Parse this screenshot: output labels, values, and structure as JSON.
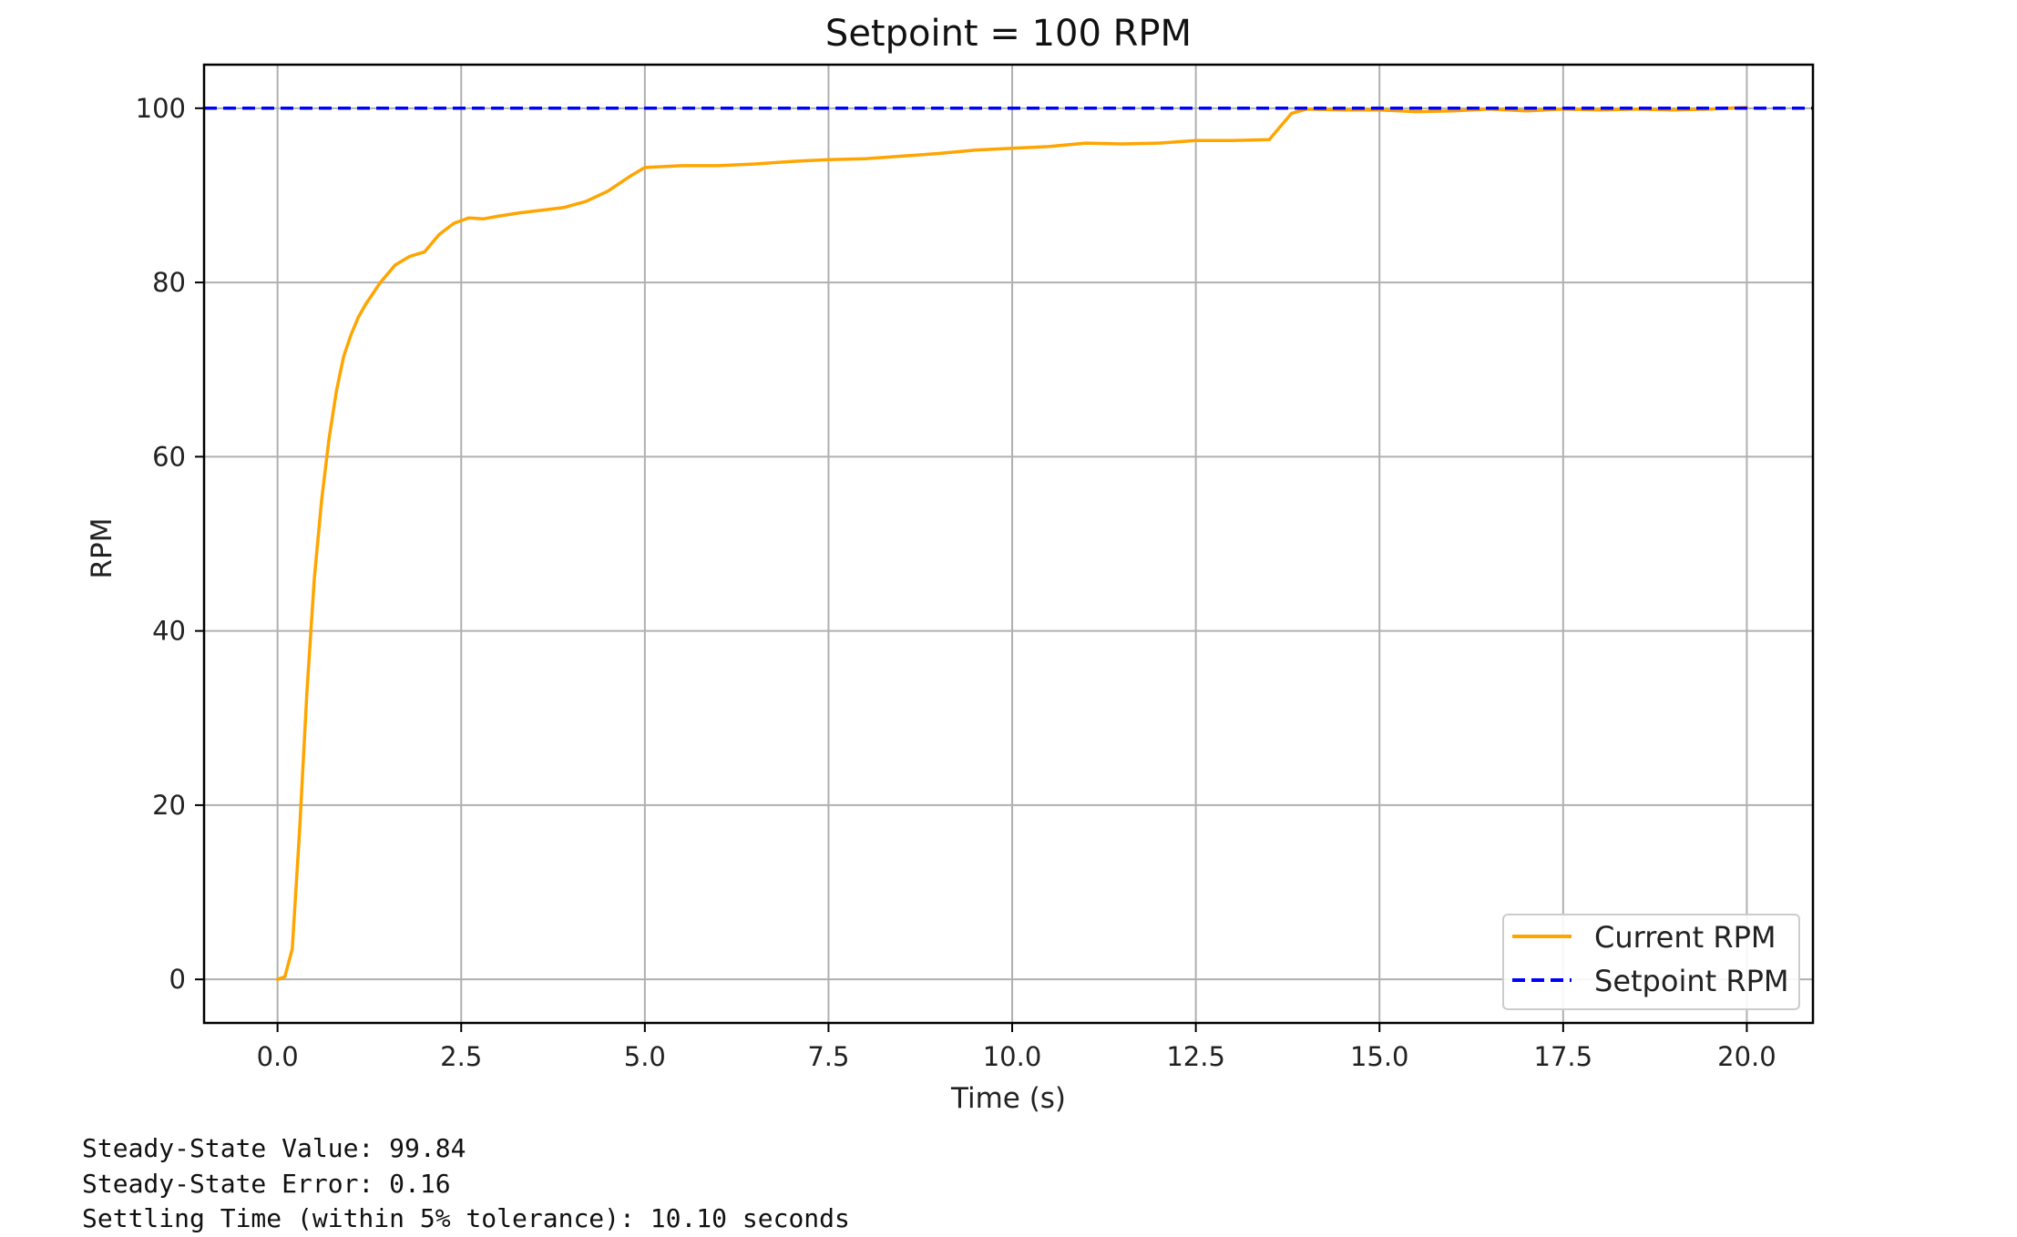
{
  "chart_data": {
    "type": "line",
    "title": "Setpoint = 100 RPM",
    "xlabel": "Time (s)",
    "ylabel": "RPM",
    "xlim": [
      -1.0,
      20.9
    ],
    "ylim": [
      -5,
      105
    ],
    "xticks": [
      0.0,
      2.5,
      5.0,
      7.5,
      10.0,
      12.5,
      15.0,
      17.5,
      20.0
    ],
    "xtick_labels": [
      "0.0",
      "2.5",
      "5.0",
      "7.5",
      "10.0",
      "12.5",
      "15.0",
      "17.5",
      "20.0"
    ],
    "yticks": [
      0,
      20,
      40,
      60,
      80,
      100
    ],
    "ytick_labels": [
      "0",
      "20",
      "40",
      "60",
      "80",
      "100"
    ],
    "grid": true,
    "legend_position": "lower-right",
    "series": [
      {
        "name": "Current RPM",
        "color": "#FFA500",
        "style": "solid",
        "x": [
          0.0,
          0.1,
          0.2,
          0.3,
          0.4,
          0.5,
          0.6,
          0.7,
          0.8,
          0.9,
          1.0,
          1.1,
          1.2,
          1.4,
          1.6,
          1.8,
          2.0,
          2.2,
          2.4,
          2.6,
          2.8,
          3.0,
          3.3,
          3.6,
          3.9,
          4.2,
          4.5,
          4.8,
          5.0,
          5.5,
          6.0,
          6.5,
          7.0,
          7.5,
          8.0,
          8.5,
          9.0,
          9.5,
          10.0,
          10.5,
          11.0,
          11.5,
          12.0,
          12.5,
          13.0,
          13.5,
          13.8,
          14.0,
          14.5,
          15.0,
          15.5,
          16.0,
          16.5,
          17.0,
          17.5,
          18.0,
          18.5,
          19.0,
          19.5,
          20.0
        ],
        "y": [
          0.0,
          0.3,
          3.5,
          17.0,
          33.0,
          46.0,
          55.0,
          62.0,
          67.5,
          71.5,
          74.0,
          76.0,
          77.5,
          80.0,
          82.0,
          83.0,
          83.5,
          85.5,
          86.8,
          87.4,
          87.3,
          87.6,
          88.0,
          88.3,
          88.6,
          89.3,
          90.5,
          92.2,
          93.2,
          93.4,
          93.4,
          93.6,
          93.9,
          94.1,
          94.2,
          94.5,
          94.8,
          95.2,
          95.4,
          95.6,
          96.0,
          95.9,
          96.0,
          96.3,
          96.3,
          96.4,
          99.4,
          99.9,
          99.8,
          99.8,
          99.6,
          99.7,
          99.9,
          99.7,
          99.9,
          99.8,
          99.9,
          99.8,
          99.9,
          100.1
        ]
      },
      {
        "name": "Setpoint RPM",
        "color": "#0000FF",
        "style": "dashed",
        "x": [
          -1.0,
          20.9
        ],
        "y": [
          100,
          100
        ]
      }
    ]
  },
  "stats": {
    "steady_state_value": "Steady-State Value: 99.84",
    "steady_state_error": "Steady-State Error: 0.16",
    "settling_time": "Settling Time (within 5% tolerance): 10.10 seconds"
  }
}
